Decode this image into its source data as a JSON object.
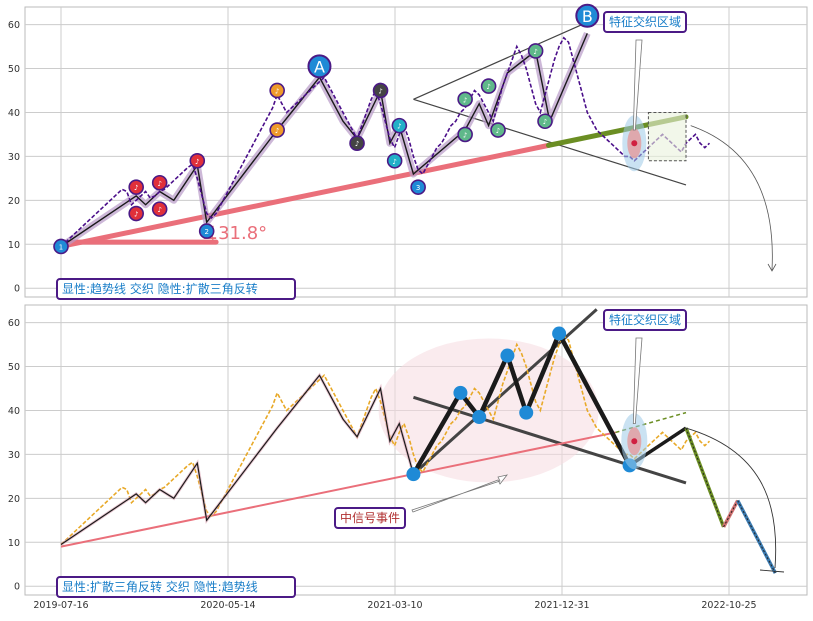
{
  "colors": {
    "grid": "#cccccc",
    "axis_text": "#333333",
    "trend_pink": "#ea6f7a",
    "wave_black": "#1a1a1a",
    "price_top": "#4b0f8a",
    "price_bottom": "#e8a928",
    "olive": "#6b8e23",
    "node_blue": "#1f8ad6",
    "label_border": "#4b1a86",
    "label_text": "#1a7ec8",
    "event_text": "#b03030"
  },
  "chart_data": [
    {
      "type": "line",
      "name": "top-panel",
      "x_tick_labels": [
        "2019-07-16",
        "2020-05-14",
        "2021-03-10",
        "2021-12-31",
        "2022-10-25"
      ],
      "y_ticks": [
        0,
        10,
        20,
        30,
        40,
        50,
        60
      ],
      "ylim": [
        -2,
        64
      ],
      "grid": true,
      "legend_box": "显性:趋势线 交织 隐性:扩散三角反转",
      "annotation_feature": "特征交织区域",
      "angle_label": "∡31.8°",
      "wave_labels": [
        "A",
        "B"
      ],
      "wave_nodes": [
        {
          "t": 0,
          "v": 9.5,
          "c": "#1f8ad6",
          "label": "1"
        },
        {
          "t": 16,
          "v": 23,
          "c": "#e0303a",
          "label": "♪"
        },
        {
          "t": 16,
          "v": 17,
          "c": "#e0303a",
          "label": "♪"
        },
        {
          "t": 21,
          "v": 24,
          "c": "#e0303a",
          "label": "♪"
        },
        {
          "t": 21,
          "v": 18,
          "c": "#e0303a",
          "label": "♪"
        },
        {
          "t": 29,
          "v": 29,
          "c": "#e0303a",
          "label": "♪"
        },
        {
          "t": 31,
          "v": 13,
          "c": "#1f8ad6",
          "label": "2"
        },
        {
          "t": 46,
          "v": 45,
          "c": "#ef9a2a",
          "label": "♪"
        },
        {
          "t": 46,
          "v": 36,
          "c": "#ef9a2a",
          "label": "♪"
        },
        {
          "t": 63,
          "v": 33,
          "c": "#444444",
          "label": "♪"
        },
        {
          "t": 68,
          "v": 45,
          "c": "#444444",
          "label": "♪"
        },
        {
          "t": 71,
          "v": 29,
          "c": "#22b0c8",
          "label": "♪"
        },
        {
          "t": 72,
          "v": 37,
          "c": "#22b0c8",
          "label": "♪"
        },
        {
          "t": 76,
          "v": 23,
          "c": "#1f8ad6",
          "label": "3"
        },
        {
          "t": 86,
          "v": 43,
          "c": "#5fb88a",
          "label": "♪"
        },
        {
          "t": 86,
          "v": 35,
          "c": "#5fb88a",
          "label": "♪"
        },
        {
          "t": 91,
          "v": 46,
          "c": "#5fb88a",
          "label": "♪"
        },
        {
          "t": 93,
          "v": 36,
          "c": "#5fb88a",
          "label": "♪"
        },
        {
          "t": 101,
          "v": 54,
          "c": "#5fb88a",
          "label": "♪"
        },
        {
          "t": 103,
          "v": 38,
          "c": "#5fb88a",
          "label": "♪"
        }
      ],
      "price": [
        9.5,
        10.5,
        11.5,
        12.5,
        13.5,
        14.5,
        15.5,
        16.5,
        17.5,
        18.5,
        19.5,
        20.5,
        21.5,
        22.5,
        22,
        19,
        20,
        21,
        22,
        20.5,
        21,
        22,
        22.5,
        23.5,
        24.5,
        25.5,
        26.5,
        27.5,
        28.2,
        25,
        21,
        17,
        16,
        17,
        19,
        21,
        23,
        25,
        27,
        29,
        31,
        33,
        35,
        37,
        39,
        41,
        44,
        42,
        40,
        41,
        42,
        43,
        44,
        45,
        46,
        47,
        48,
        46,
        44,
        42,
        40,
        38,
        36,
        34,
        37,
        40,
        43,
        45,
        42,
        38,
        34,
        32,
        35,
        37,
        34,
        30,
        27,
        26,
        28,
        30,
        32,
        33,
        35,
        37,
        38,
        40,
        41,
        43,
        45,
        44,
        42,
        40,
        38,
        42,
        46,
        49,
        52,
        55,
        53,
        50,
        46,
        42,
        40,
        44,
        48,
        52,
        55,
        57,
        56,
        52,
        48,
        44,
        40,
        38,
        36,
        35,
        34,
        33,
        32,
        31,
        30,
        30,
        29,
        30,
        31,
        32,
        33,
        34,
        35,
        34,
        33,
        32,
        31,
        33,
        34,
        35,
        33,
        32,
        33
      ],
      "trend": {
        "t0": 0,
        "v0": 9.5,
        "t1": 133,
        "v1": 39
      },
      "wave_path": [
        [
          0,
          9.5
        ],
        [
          16,
          21
        ],
        [
          18,
          19
        ],
        [
          21,
          22
        ],
        [
          24,
          20
        ],
        [
          29,
          28
        ],
        [
          31,
          15
        ],
        [
          46,
          36
        ],
        [
          49,
          40
        ],
        [
          55,
          48
        ],
        [
          60,
          38
        ],
        [
          63,
          34
        ],
        [
          68,
          45
        ],
        [
          70,
          33
        ],
        [
          72,
          37
        ],
        [
          75,
          26
        ],
        [
          86,
          36
        ],
        [
          89,
          42
        ],
        [
          91,
          37
        ],
        [
          95,
          49
        ],
        [
          101,
          54
        ],
        [
          104,
          38
        ],
        [
          112,
          58
        ]
      ]
    },
    {
      "type": "line",
      "name": "bottom-panel",
      "x_tick_labels": [
        "2019-07-16",
        "2020-05-14",
        "2021-03-10",
        "2021-12-31",
        "2022-10-25"
      ],
      "y_ticks": [
        0,
        10,
        20,
        30,
        40,
        50,
        60
      ],
      "ylim": [
        -2,
        64
      ],
      "grid": true,
      "legend_box": "显性:扩散三角反转 交织 隐性:趋势线",
      "annotation_feature": "特征交织区域",
      "annotation_event": "中信号事件",
      "big_nodes": [
        [
          75,
          25.5
        ],
        [
          85,
          44
        ],
        [
          89,
          38.5
        ],
        [
          95,
          52.5
        ],
        [
          99,
          39.5
        ],
        [
          106,
          57.5
        ],
        [
          121,
          27.5
        ]
      ],
      "forecast": [
        [
          121,
          27.5
        ],
        [
          133,
          36
        ],
        [
          141,
          13.5
        ],
        [
          144,
          19.5
        ],
        [
          152,
          3
        ]
      ]
    }
  ]
}
